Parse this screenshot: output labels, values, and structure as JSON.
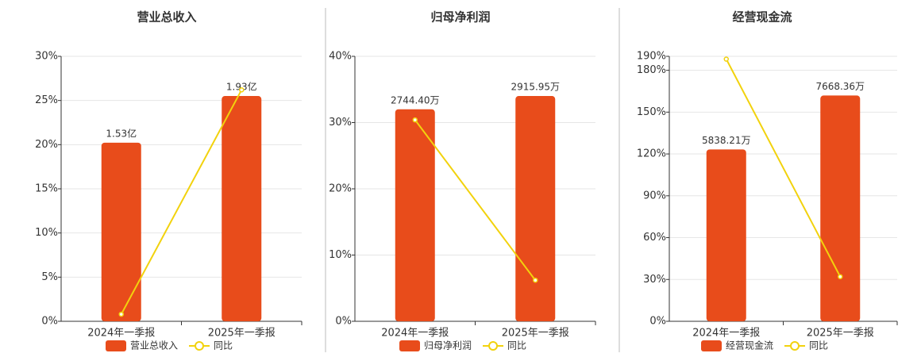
{
  "chart_data": [
    {
      "type": "bar",
      "title": "营业总收入",
      "categories": [
        "2024年一季报",
        "2025年一季报"
      ],
      "series": [
        {
          "name": "营业总收入",
          "type": "bar",
          "axis": "y2",
          "color": "#e84c1b",
          "values": [
            1.53,
            1.93
          ],
          "value_labels": [
            "1.53亿",
            "1.93亿"
          ]
        },
        {
          "name": "同比",
          "type": "line",
          "color": "#f2d20d",
          "values": [
            0.8,
            26.2
          ]
        }
      ],
      "ylim": [
        0,
        30
      ],
      "yticks": [
        {
          "value": 0,
          "label": "0%"
        },
        {
          "value": 5,
          "label": "5%"
        },
        {
          "value": 10,
          "label": "10%"
        },
        {
          "value": 15,
          "label": "15%"
        },
        {
          "value": 20,
          "label": "20%"
        },
        {
          "value": 25,
          "label": "25%"
        },
        {
          "value": 30,
          "label": "30%"
        }
      ],
      "y2lim": [
        0,
        2.27
      ],
      "grid": true
    },
    {
      "type": "bar",
      "title": "归母净利润",
      "categories": [
        "2024年一季报",
        "2025年一季报"
      ],
      "series": [
        {
          "name": "归母净利润",
          "type": "bar",
          "axis": "y2",
          "color": "#e84c1b",
          "values": [
            2744.4,
            2915.95
          ],
          "value_labels": [
            "2744.40万",
            "2915.95万"
          ]
        },
        {
          "name": "同比",
          "type": "line",
          "color": "#f2d20d",
          "values": [
            30.4,
            6.2
          ]
        }
      ],
      "ylim": [
        0,
        40
      ],
      "yticks": [
        {
          "value": 0,
          "label": "0%"
        },
        {
          "value": 10,
          "label": "10%"
        },
        {
          "value": 20,
          "label": "20%"
        },
        {
          "value": 30,
          "label": "30%"
        },
        {
          "value": 40,
          "label": "40%"
        }
      ],
      "y2lim": [
        0,
        3430
      ],
      "grid": true
    },
    {
      "type": "bar",
      "title": "经营现金流",
      "categories": [
        "2024年一季报",
        "2025年一季报"
      ],
      "series": [
        {
          "name": "经营现金流",
          "type": "bar",
          "axis": "y2",
          "color": "#e84c1b",
          "values": [
            5838.21,
            7668.36
          ],
          "value_labels": [
            "5838.21万",
            "7668.36万"
          ]
        },
        {
          "name": "同比",
          "type": "line",
          "color": "#f2d20d",
          "values": [
            188,
            32
          ]
        }
      ],
      "ylim": [
        0,
        190
      ],
      "yticks": [
        {
          "value": 0,
          "label": "0%"
        },
        {
          "value": 30,
          "label": "30%"
        },
        {
          "value": 60,
          "label": "60%"
        },
        {
          "value": 90,
          "label": "90%"
        },
        {
          "value": 120,
          "label": "120%"
        },
        {
          "value": 150,
          "label": "150%"
        },
        {
          "value": 180,
          "label": "180%"
        },
        {
          "value": 190,
          "label": "190%"
        }
      ],
      "y2lim": [
        0,
        9000
      ],
      "grid": true
    }
  ]
}
